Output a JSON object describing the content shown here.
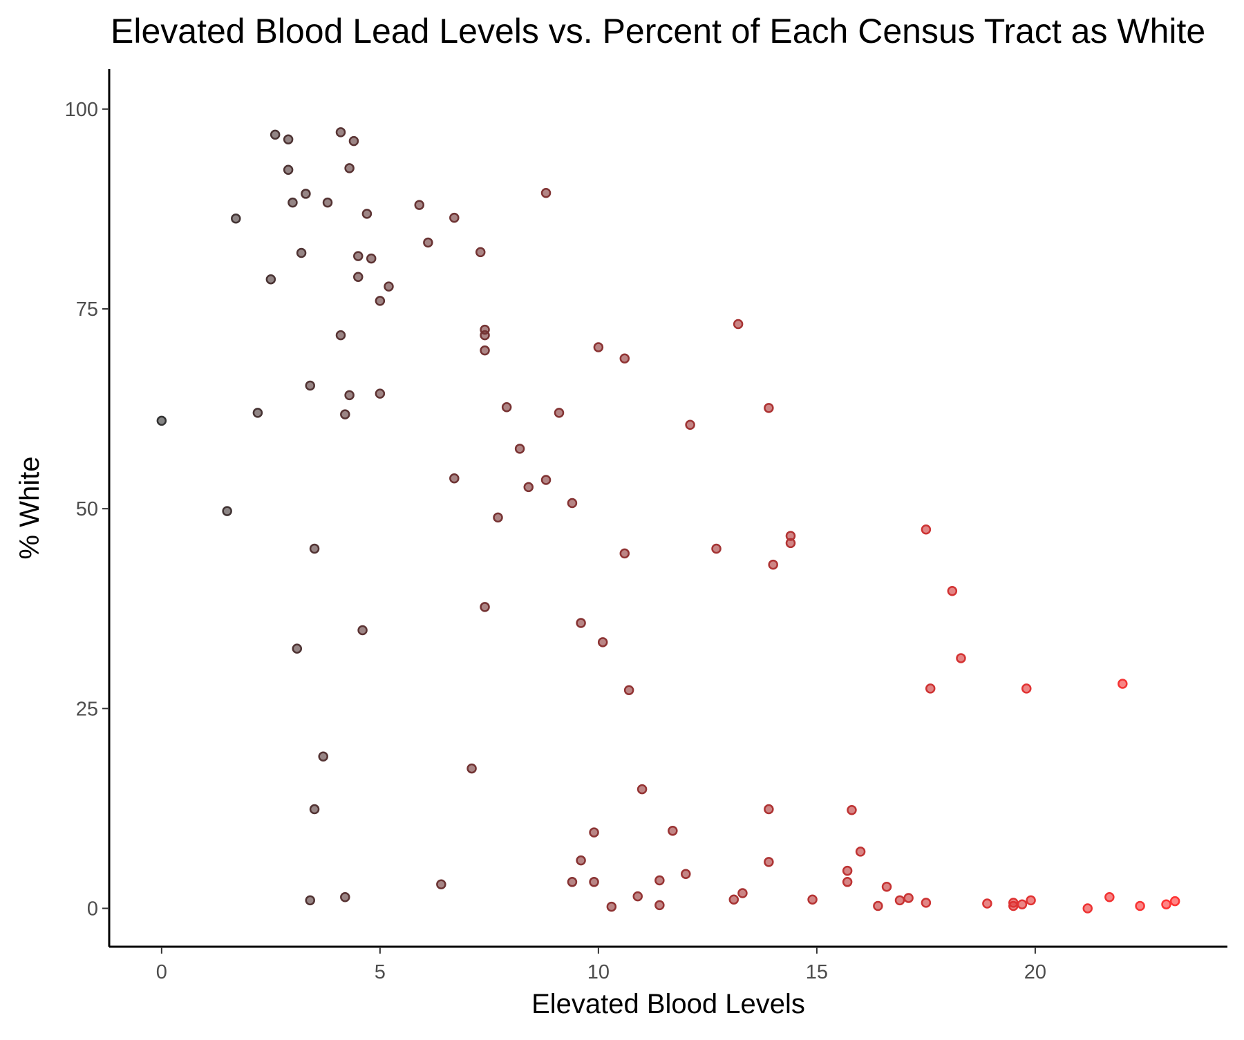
{
  "chart_data": {
    "type": "scatter",
    "title": "Elevated Blood Lead Levels vs. Percent of Each Census Tract as White",
    "xlabel": "Elevated Blood Levels",
    "ylabel": "% White",
    "xlim": [
      -1.2,
      24.4
    ],
    "ylim": [
      -4.8,
      105
    ],
    "xticks": [
      0,
      5,
      10,
      15,
      20
    ],
    "yticks": [
      0,
      25,
      50,
      75,
      100
    ],
    "grid": false,
    "legend": "none",
    "color_low": "#333333",
    "color_high": "#ff3333",
    "color_range": [
      0,
      23.2
    ],
    "points": [
      [
        0,
        61
      ],
      [
        1.7,
        86.3
      ],
      [
        1.5,
        49.7
      ],
      [
        2.2,
        62
      ],
      [
        2.5,
        78.7
      ],
      [
        2.6,
        96.8
      ],
      [
        2.9,
        96.2
      ],
      [
        2.9,
        92.4
      ],
      [
        3.0,
        88.3
      ],
      [
        3.2,
        82
      ],
      [
        3.3,
        89.4
      ],
      [
        3.4,
        65.4
      ],
      [
        3.5,
        45
      ],
      [
        3.1,
        32.5
      ],
      [
        3.7,
        19
      ],
      [
        3.5,
        12.4
      ],
      [
        3.4,
        1
      ],
      [
        3.8,
        88.3
      ],
      [
        4.1,
        71.7
      ],
      [
        4.1,
        97.1
      ],
      [
        4.2,
        1.4
      ],
      [
        4.2,
        61.8
      ],
      [
        4.3,
        64.2
      ],
      [
        4.3,
        92.6
      ],
      [
        4.4,
        96
      ],
      [
        4.5,
        81.6
      ],
      [
        4.5,
        79
      ],
      [
        4.7,
        86.9
      ],
      [
        4.6,
        34.8
      ],
      [
        4.8,
        81.3
      ],
      [
        5.0,
        76
      ],
      [
        5.0,
        64.4
      ],
      [
        5.2,
        77.8
      ],
      [
        5.9,
        88
      ],
      [
        6.1,
        83.3
      ],
      [
        6.4,
        3
      ],
      [
        6.7,
        86.4
      ],
      [
        6.7,
        53.8
      ],
      [
        7.1,
        17.5
      ],
      [
        7.3,
        82.1
      ],
      [
        7.4,
        72.4
      ],
      [
        7.4,
        71.7
      ],
      [
        7.4,
        69.8
      ],
      [
        7.4,
        37.7
      ],
      [
        7.7,
        48.9
      ],
      [
        7.9,
        62.7
      ],
      [
        8.2,
        57.5
      ],
      [
        8.4,
        52.7
      ],
      [
        8.8,
        89.5
      ],
      [
        8.8,
        53.6
      ],
      [
        9.1,
        62
      ],
      [
        9.4,
        50.7
      ],
      [
        9.4,
        3.3
      ],
      [
        9.6,
        35.7
      ],
      [
        9.6,
        6
      ],
      [
        9.9,
        9.5
      ],
      [
        9.9,
        3.3
      ],
      [
        10.0,
        70.2
      ],
      [
        10.1,
        33.3
      ],
      [
        10.3,
        0.2
      ],
      [
        10.6,
        44.4
      ],
      [
        10.6,
        68.8
      ],
      [
        10.7,
        27.3
      ],
      [
        10.9,
        1.5
      ],
      [
        11.0,
        14.9
      ],
      [
        11.4,
        3.5
      ],
      [
        11.4,
        0.4
      ],
      [
        11.7,
        9.7
      ],
      [
        12.0,
        4.3
      ],
      [
        12.1,
        60.5
      ],
      [
        12.7,
        45
      ],
      [
        13.1,
        1.1
      ],
      [
        13.2,
        73.1
      ],
      [
        13.3,
        1.9
      ],
      [
        13.9,
        62.6
      ],
      [
        13.9,
        12.4
      ],
      [
        13.9,
        5.8
      ],
      [
        14.0,
        43
      ],
      [
        14.4,
        45.7
      ],
      [
        14.4,
        46.6
      ],
      [
        14.9,
        1.1
      ],
      [
        15.7,
        3.3
      ],
      [
        15.7,
        4.7
      ],
      [
        15.8,
        12.3
      ],
      [
        16.0,
        7.1
      ],
      [
        16.4,
        0.3
      ],
      [
        16.6,
        2.7
      ],
      [
        16.9,
        1
      ],
      [
        17.1,
        1.3
      ],
      [
        17.5,
        47.4
      ],
      [
        17.5,
        0.7
      ],
      [
        17.6,
        27.5
      ],
      [
        18.1,
        39.7
      ],
      [
        18.3,
        31.3
      ],
      [
        18.9,
        0.6
      ],
      [
        19.5,
        0.7
      ],
      [
        19.5,
        0.3
      ],
      [
        19.7,
        0.5
      ],
      [
        19.8,
        27.5
      ],
      [
        19.9,
        1
      ],
      [
        21.2,
        0
      ],
      [
        21.7,
        1.4
      ],
      [
        22.0,
        28.1
      ],
      [
        22.4,
        0.3
      ],
      [
        23.0,
        0.5
      ],
      [
        23.2,
        0.9
      ]
    ]
  }
}
